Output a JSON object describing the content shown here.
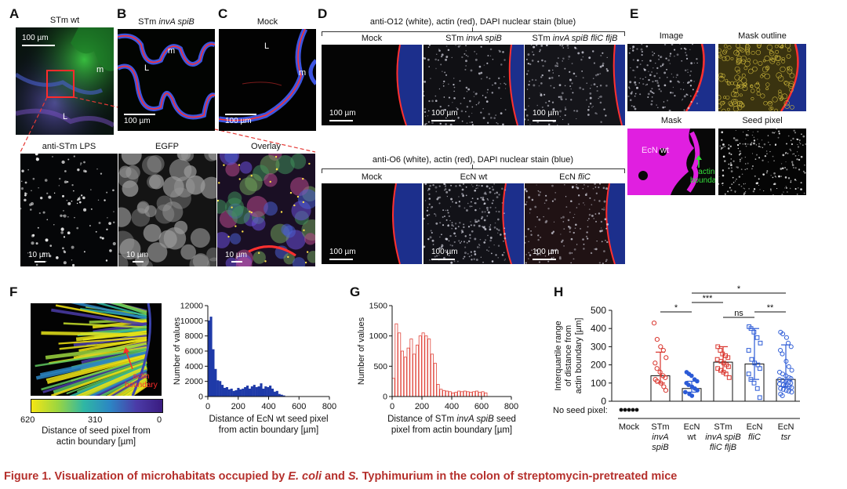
{
  "panels": {
    "A": {
      "letter": "A",
      "title": "STm wt",
      "scale": "100 µm",
      "labels": [
        "m",
        "L"
      ],
      "subpanels": [
        {
          "title": "anti-STm LPS",
          "scale": "10 µm"
        },
        {
          "title": "EGFP",
          "scale": "10 µm"
        },
        {
          "title": "Overlay",
          "scale": "10 µm"
        }
      ]
    },
    "B": {
      "letter": "B",
      "title_prefix": "STm ",
      "title_italic": "invA spiB",
      "scale": "100 µm",
      "labels": [
        "m",
        "L"
      ]
    },
    "C": {
      "letter": "C",
      "title": "Mock",
      "scale": "100 µm",
      "labels": [
        "L",
        "m"
      ]
    },
    "D": {
      "letter": "D",
      "top_heading": "anti-O12 (white), actin (red), DAPI nuclear stain (blue)",
      "top_images": [
        {
          "prefix": "Mock",
          "italic": "",
          "scale": "100 µm"
        },
        {
          "prefix": "STm ",
          "italic": "invA spiB",
          "scale": "100 µm"
        },
        {
          "prefix": "STm ",
          "italic": "invA spiB fliC fljB",
          "scale": "100 µm"
        }
      ],
      "bottom_heading": "anti-O6 (white), actin (red), DAPI nuclear stain (blue)",
      "bottom_images": [
        {
          "prefix": "Mock",
          "italic": "",
          "scale": "100 µm"
        },
        {
          "prefix": "EcN wt",
          "italic": "",
          "scale": "100 µm"
        },
        {
          "prefix": "EcN ",
          "italic": "fliC",
          "scale": "100 µm"
        }
      ]
    },
    "E": {
      "letter": "E",
      "images": [
        "Image",
        "Mask outline",
        "Mask",
        "Seed pixel"
      ],
      "mask_label": "EcN wt",
      "boundary_label": [
        "actin",
        "boundary"
      ]
    },
    "F": {
      "letter": "F",
      "arrow_label": [
        "actin",
        "boundary"
      ],
      "colorbar_ticks": [
        "620",
        "310",
        "0"
      ],
      "colorbar_label": [
        "Distance of seed pixel from",
        "actin boundary [µm]"
      ]
    },
    "G": {
      "letter": "G"
    },
    "H": {
      "letter": "H",
      "no_seed_label": "No seed pixel:"
    }
  },
  "colors": {
    "bar_blue": "#1f3aa8",
    "bar_red": "#e0443a",
    "point_red": "#d9332b",
    "point_blue": "#2b5ad6",
    "caption": "#b5302c"
  },
  "chart_data": [
    {
      "id": "F-histogram",
      "type": "bar",
      "xlabel": [
        "Distance of EcN wt seed pixel",
        "from actin boundary [µm]"
      ],
      "ylabel": "Number of values",
      "xlim": [
        0,
        800
      ],
      "ylim": [
        0,
        12000
      ],
      "xticks": [
        0,
        200,
        400,
        600,
        800
      ],
      "yticks": [
        0,
        2000,
        4000,
        6000,
        8000,
        10000,
        12000
      ],
      "bin_width": 15,
      "bin_start": 0,
      "values": [
        10000,
        10500,
        6200,
        3600,
        2100,
        2000,
        1500,
        1100,
        1200,
        900,
        1000,
        700,
        800,
        1100,
        900,
        1000,
        1200,
        1400,
        1000,
        1300,
        1500,
        1200,
        1300,
        1700,
        1000,
        1300,
        1200,
        1400,
        1000,
        600,
        700,
        300,
        200,
        100
      ]
    },
    {
      "id": "G-histogram",
      "type": "bar",
      "xlabel": [
        "Distance of STm invA spiB seed",
        "pixel from actin boundary [µm]"
      ],
      "ylabel": "Number of values",
      "xlim": [
        0,
        800
      ],
      "ylim": [
        0,
        1500
      ],
      "xticks": [
        0,
        200,
        400,
        600,
        800
      ],
      "yticks": [
        0,
        500,
        1000,
        1500
      ],
      "bin_width": 20,
      "bin_start": 0,
      "values": [
        300,
        1200,
        1050,
        750,
        650,
        800,
        950,
        700,
        850,
        1000,
        1050,
        1000,
        950,
        700,
        550,
        200,
        120,
        100,
        90,
        80,
        60,
        70,
        90,
        80,
        90,
        80,
        70,
        80,
        90,
        70,
        80,
        60
      ]
    },
    {
      "id": "H-scatter",
      "type": "scatter",
      "ylabel": [
        "Interquartile range",
        "of distance from",
        "actin boundary [µm]"
      ],
      "ylim": [
        0,
        500
      ],
      "yticks": [
        0,
        100,
        200,
        300,
        400,
        500
      ],
      "categories": [
        {
          "line1": "Mock",
          "line2": "",
          "line3": "",
          "italic_from": 9
        },
        {
          "line1": "STm",
          "line2": "invA",
          "line3": "spiB",
          "italic_from": 1
        },
        {
          "line1": "EcN",
          "line2": "wt",
          "line3": "",
          "italic_from": 9
        },
        {
          "line1": "STm",
          "line2": "invA spiB",
          "line3": "fliC fljB",
          "italic_from": 1
        },
        {
          "line1": "EcN",
          "line2": "fliC",
          "line3": "",
          "italic_from": 1
        },
        {
          "line1": "EcN",
          "line2": "tsr",
          "line3": "",
          "italic_from": 1
        }
      ],
      "series": [
        {
          "group": 1,
          "median": 140,
          "q1": 100,
          "q3": 270,
          "points": [
            430,
            340,
            300,
            280,
            240,
            210,
            180,
            160,
            140,
            130,
            120,
            110,
            100,
            80,
            60
          ]
        },
        {
          "group": 2,
          "median": 70,
          "q1": 50,
          "q3": 110,
          "points": [
            160,
            150,
            140,
            120,
            110,
            100,
            90,
            80,
            70,
            60,
            50,
            40,
            30
          ]
        },
        {
          "group": 3,
          "median": 215,
          "q1": 160,
          "q3": 300,
          "points": [
            300,
            280,
            260,
            250,
            240,
            230,
            220,
            210,
            200,
            190,
            180,
            170,
            160,
            150,
            130
          ]
        },
        {
          "group": 4,
          "median": 205,
          "q1": 120,
          "q3": 400,
          "points": [
            410,
            400,
            380,
            350,
            320,
            280,
            230,
            210,
            200,
            180,
            150,
            120,
            100,
            70,
            20
          ]
        },
        {
          "group": 5,
          "median": 120,
          "q1": 80,
          "q3": 310,
          "points": [
            380,
            370,
            350,
            320,
            300,
            280,
            260,
            220,
            190,
            170,
            160,
            150,
            140,
            130,
            125,
            120,
            115,
            110,
            105,
            100,
            95,
            90,
            85,
            80,
            75,
            70,
            65,
            60,
            55,
            50,
            40,
            30
          ]
        }
      ],
      "mock_points": 5,
      "significance": [
        {
          "from": 1,
          "to": 2,
          "label": "*"
        },
        {
          "from": 2,
          "to": 3,
          "label": "***"
        },
        {
          "from": 2,
          "to": 5,
          "label": "*"
        },
        {
          "from": 3,
          "to": 4,
          "label": "ns"
        },
        {
          "from": 4,
          "to": 5,
          "label": "**"
        }
      ]
    }
  ],
  "caption": {
    "prefix": "Figure 1.  Visualization of microhabitats occupied by ",
    "it1": "E. coli",
    "mid": " and ",
    "it2": "S.",
    "suffix": " Typhimurium in the colon of streptomycin-pretreated mice"
  }
}
